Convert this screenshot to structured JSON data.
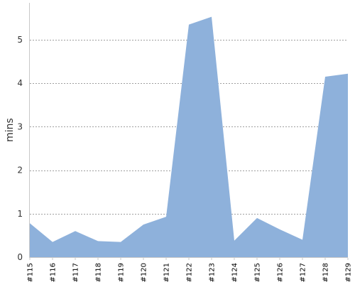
{
  "chart_data": {
    "type": "area",
    "title": "",
    "xlabel": "",
    "ylabel": "mins",
    "categories": [
      "#115",
      "#116",
      "#117",
      "#118",
      "#119",
      "#120",
      "#121",
      "#122",
      "#123",
      "#124",
      "#125",
      "#126",
      "#127",
      "#128",
      "#129"
    ],
    "values": [
      0.78,
      0.35,
      0.6,
      0.37,
      0.35,
      0.75,
      0.93,
      5.35,
      5.53,
      0.38,
      0.9,
      0.64,
      0.4,
      4.15,
      4.22
    ],
    "ylim": [
      0,
      5.85
    ],
    "yticks": [
      0,
      1,
      2,
      3,
      4,
      5
    ],
    "grid": "horizontal dashed",
    "legend": "none",
    "fill_color": "#8eb1db",
    "grid_color": "#808080",
    "axis_color": "#c8c8c8"
  }
}
